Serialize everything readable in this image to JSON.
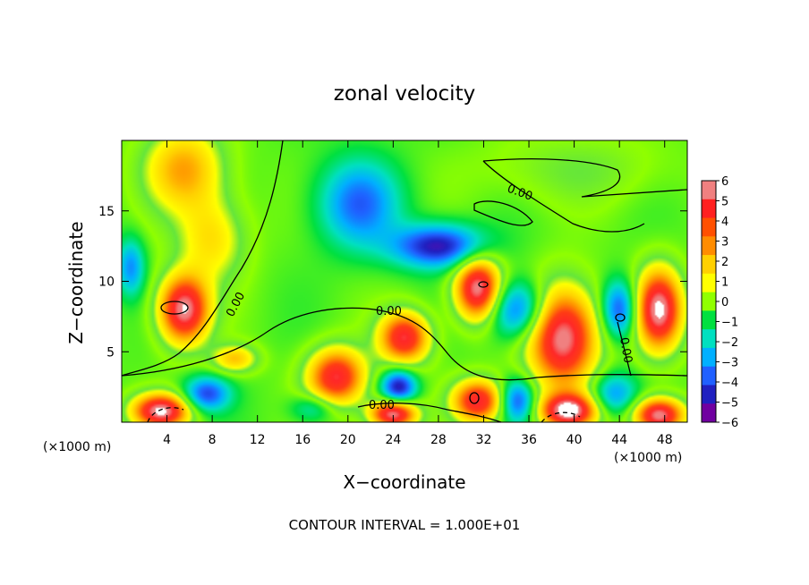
{
  "chart_data": {
    "type": "heatmap",
    "title": "zonal velocity",
    "xlabel": "X−coordinate",
    "ylabel": "Z−coordinate",
    "x_unit": "(×1000 m)",
    "y_unit": "(×1000 m)",
    "footer": "CONTOUR INTERVAL = 1.000E+01",
    "xlim": [
      0,
      50
    ],
    "ylim": [
      0,
      20
    ],
    "x_ticks": [
      4,
      8,
      12,
      16,
      20,
      24,
      28,
      32,
      36,
      40,
      44,
      48
    ],
    "y_ticks": [
      5,
      10,
      15
    ],
    "colorbar": {
      "levels": [
        6,
        5,
        4,
        3,
        2,
        1,
        0,
        -1,
        -2,
        -3,
        -4,
        -5,
        -6
      ],
      "labels": [
        "6",
        "5",
        "4",
        "3",
        "2",
        "1",
        "0",
        "−1",
        "−2",
        "−3",
        "−4",
        "−5",
        "−6"
      ],
      "colors": [
        "#f08080",
        "#ff2020",
        "#ff5000",
        "#ff8c00",
        "#ffd000",
        "#ffff00",
        "#90ff00",
        "#00e040",
        "#00e0c0",
        "#00b0ff",
        "#2060ff",
        "#2020c0",
        "#7000a0"
      ]
    },
    "contour_labels": [
      "0.00",
      "0.00",
      "0.00",
      "0.00",
      "0.00"
    ],
    "features": [
      {
        "x": 5.5,
        "z": 8.0,
        "value": 7,
        "sx": 2.2,
        "sz": 2.4
      },
      {
        "x": 3.5,
        "z": 0.8,
        "value": 7,
        "sx": 2.5,
        "sz": 1.2
      },
      {
        "x": 19.0,
        "z": 3.2,
        "value": 6,
        "sx": 2.5,
        "sz": 2.0
      },
      {
        "x": 25.0,
        "z": 6.0,
        "value": 6,
        "sx": 2.2,
        "sz": 1.8
      },
      {
        "x": 31.5,
        "z": 1.5,
        "value": 6,
        "sx": 2.2,
        "sz": 1.5
      },
      {
        "x": 31.5,
        "z": 9.5,
        "value": 7,
        "sx": 2.0,
        "sz": 2.2
      },
      {
        "x": 39.0,
        "z": 6.0,
        "value": 7,
        "sx": 3.0,
        "sz": 3.5
      },
      {
        "x": 39.5,
        "z": 0.8,
        "value": 7,
        "sx": 2.5,
        "sz": 1.2
      },
      {
        "x": 47.5,
        "z": 8.0,
        "value": 7,
        "sx": 2.0,
        "sz": 2.8
      },
      {
        "x": 47.5,
        "z": 0.5,
        "value": 7,
        "sx": 2.2,
        "sz": 1.2
      },
      {
        "x": 24.0,
        "z": 0.6,
        "value": 7,
        "sx": 2.0,
        "sz": 1.0
      },
      {
        "x": 10.0,
        "z": 4.5,
        "value": 3,
        "sx": 2.0,
        "sz": 1.0
      },
      {
        "x": 5.5,
        "z": 18.0,
        "value": 3.5,
        "sx": 3.5,
        "sz": 3.0
      },
      {
        "x": 8.0,
        "z": 13.0,
        "value": 2.5,
        "sx": 3.0,
        "sz": 3.0
      },
      {
        "x": 40.0,
        "z": 18.0,
        "value": 1.0,
        "sx": 8.0,
        "sz": 2.5
      },
      {
        "x": 28.0,
        "z": 12.5,
        "value": -5,
        "sx": 4.0,
        "sz": 1.5
      },
      {
        "x": 21.0,
        "z": 15.5,
        "value": -3.5,
        "sx": 3.5,
        "sz": 3.0
      },
      {
        "x": 35.0,
        "z": 8.0,
        "value": -4,
        "sx": 2.5,
        "sz": 2.0
      },
      {
        "x": 44.0,
        "z": 8.0,
        "value": -4,
        "sx": 1.5,
        "sz": 2.0
      },
      {
        "x": 0.8,
        "z": 11.0,
        "value": -3,
        "sx": 1.2,
        "sz": 2.0
      },
      {
        "x": 24.5,
        "z": 2.5,
        "value": -5,
        "sx": 1.5,
        "sz": 1.2
      },
      {
        "x": 7.5,
        "z": 2.0,
        "value": -4,
        "sx": 2.0,
        "sz": 1.2
      },
      {
        "x": 35.0,
        "z": 1.5,
        "value": -4,
        "sx": 1.5,
        "sz": 1.5
      },
      {
        "x": 43.5,
        "z": 2.0,
        "value": -3,
        "sx": 2.0,
        "sz": 1.5
      },
      {
        "x": 17.0,
        "z": 1.0,
        "value": -2,
        "sx": 2.0,
        "sz": 1.0
      }
    ]
  }
}
